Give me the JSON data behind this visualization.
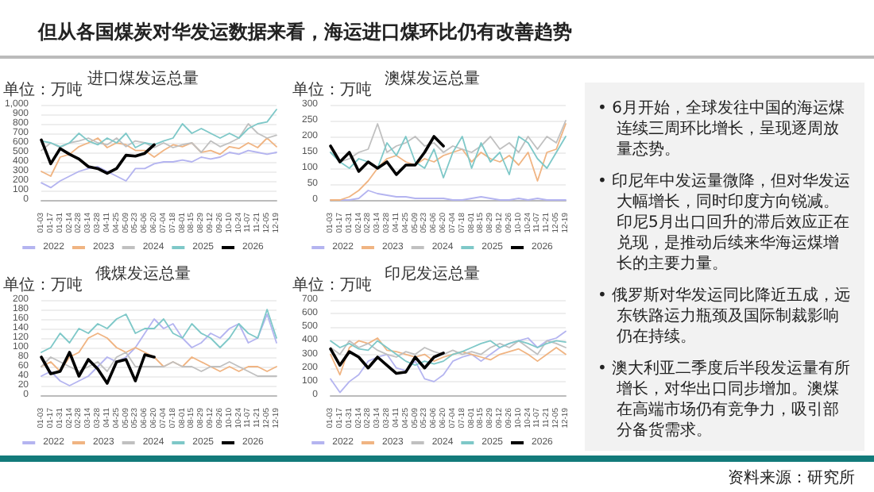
{
  "chart_data": [
    {
      "type": "line",
      "title": "进口煤发运总量",
      "annotations": [
        "单位：万吨"
      ],
      "categories": [
        "01-03",
        "01-17",
        "01-31",
        "02-14",
        "02-28",
        "03-14",
        "03-28",
        "04-11",
        "04-25",
        "05-09",
        "05-23",
        "06-06",
        "06-20",
        "07-04",
        "07-18",
        "08-01",
        "08-15",
        "08-29",
        "09-12",
        "09-26",
        "10-10",
        "10-24",
        "11-07",
        "11-21",
        "12-05",
        "12-19"
      ],
      "ylim": [
        0,
        1000
      ],
      "yticks": [
        0,
        100,
        200,
        300,
        400,
        500,
        600,
        700,
        800,
        900,
        {
          "value": 1000,
          "label": "1,000"
        }
      ],
      "grid": "y",
      "legend": "bottom",
      "marker": "none",
      "line_style": "solid",
      "series": [
        {
          "name": "2022",
          "color": "#b4b4f0",
          "values": [
            180,
            130,
            200,
            250,
            300,
            330,
            350,
            300,
            250,
            200,
            330,
            330,
            380,
            400,
            400,
            420,
            400,
            450,
            430,
            450,
            500,
            480,
            520,
            500,
            480,
            500
          ]
        },
        {
          "name": "2023",
          "color": "#f0b482",
          "values": [
            300,
            250,
            450,
            480,
            560,
            600,
            650,
            550,
            600,
            580,
            520,
            520,
            450,
            520,
            580,
            560,
            600,
            500,
            520,
            480,
            560,
            540,
            600,
            550,
            650,
            560
          ]
        },
        {
          "name": "2024",
          "color": "#c0c0c0",
          "values": [
            520,
            600,
            550,
            600,
            620,
            650,
            600,
            580,
            650,
            560,
            620,
            600,
            550,
            600,
            550,
            580,
            600,
            500,
            620,
            560,
            600,
            650,
            800,
            700,
            650,
            680
          ]
        },
        {
          "name": "2025",
          "color": "#7ec8c8",
          "values": [
            620,
            600,
            560,
            600,
            700,
            620,
            580,
            650,
            600,
            700,
            550,
            600,
            580,
            620,
            650,
            800,
            700,
            750,
            700,
            650,
            700,
            650,
            750,
            800,
            820,
            950
          ]
        },
        {
          "name": "2026",
          "color": "#000000",
          "values": [
            630,
            380,
            540,
            480,
            430,
            350,
            330,
            280,
            330,
            470,
            460,
            490,
            580,
            null,
            null,
            null,
            null,
            null,
            null,
            null,
            null,
            null,
            null,
            null,
            null,
            null
          ]
        }
      ]
    },
    {
      "type": "line",
      "title": "澳煤发运总量",
      "annotations": [
        "单位：万吨"
      ],
      "categories": [
        "01-03",
        "01-17",
        "01-31",
        "02-14",
        "02-28",
        "03-14",
        "03-28",
        "04-11",
        "04-25",
        "05-09",
        "05-23",
        "06-06",
        "06-20",
        "07-04",
        "07-18",
        "08-01",
        "08-15",
        "08-29",
        "09-12",
        "09-26",
        "10-10",
        "10-24",
        "11-07",
        "11-21",
        "12-05",
        "12-19"
      ],
      "ylim": [
        0,
        300
      ],
      "yticks": [
        0,
        50,
        100,
        150,
        200,
        250,
        300
      ],
      "grid": "y",
      "legend": "bottom",
      "marker": "none",
      "line_style": "solid",
      "series": [
        {
          "name": "2022",
          "color": "#b4b4f0",
          "values": [
            0,
            0,
            0,
            5,
            30,
            20,
            15,
            10,
            10,
            5,
            5,
            5,
            5,
            0,
            0,
            5,
            10,
            5,
            0,
            0,
            5,
            0,
            5,
            0,
            0,
            0
          ]
        },
        {
          "name": "2023",
          "color": "#f0b482",
          "values": [
            0,
            0,
            10,
            30,
            60,
            100,
            130,
            140,
            120,
            110,
            130,
            120,
            140,
            150,
            160,
            120,
            150,
            130,
            120,
            140,
            110,
            150,
            60,
            150,
            160,
            240
          ]
        },
        {
          "name": "2024",
          "color": "#c0c0c0",
          "values": [
            150,
            120,
            130,
            150,
            160,
            240,
            150,
            170,
            180,
            200,
            170,
            180,
            150,
            170,
            160,
            150,
            170,
            200,
            160,
            180,
            150,
            200,
            160,
            200,
            180,
            250
          ]
        },
        {
          "name": "2025",
          "color": "#7ec8c8",
          "values": [
            150,
            120,
            100,
            130,
            120,
            100,
            180,
            140,
            200,
            120,
            100,
            160,
            70,
            150,
            200,
            100,
            180,
            120,
            150,
            80,
            200,
            180,
            130,
            100,
            150,
            200
          ]
        },
        {
          "name": "2026",
          "color": "#000000",
          "values": [
            170,
            120,
            150,
            90,
            120,
            100,
            120,
            80,
            110,
            110,
            150,
            200,
            170,
            null,
            null,
            null,
            null,
            null,
            null,
            null,
            null,
            null,
            null,
            null,
            null,
            null
          ]
        }
      ]
    },
    {
      "type": "line",
      "title": "俄煤发运总量",
      "annotations": [
        "单位：万吨"
      ],
      "categories": [
        "01-03",
        "01-17",
        "01-31",
        "02-14",
        "02-28",
        "03-14",
        "03-28",
        "04-11",
        "04-25",
        "05-09",
        "05-23",
        "06-06",
        "06-20",
        "07-04",
        "07-18",
        "08-01",
        "08-15",
        "08-29",
        "09-12",
        "09-26",
        "10-10",
        "10-24",
        "11-07",
        "11-21",
        "12-05",
        "12-19"
      ],
      "ylim": [
        0,
        200
      ],
      "yticks": [
        0,
        20,
        40,
        60,
        80,
        100,
        120,
        140,
        160,
        180,
        200
      ],
      "grid": "y",
      "legend": "bottom",
      "marker": "none",
      "line_style": "solid",
      "series": [
        {
          "name": "2022",
          "color": "#b4b4f0",
          "values": [
            40,
            50,
            30,
            20,
            30,
            40,
            60,
            80,
            70,
            80,
            100,
            130,
            160,
            140,
            150,
            120,
            100,
            110,
            130,
            120,
            140,
            150,
            110,
            120,
            170,
            110
          ]
        },
        {
          "name": "2023",
          "color": "#f0b482",
          "values": [
            60,
            70,
            50,
            80,
            90,
            120,
            130,
            120,
            100,
            90,
            100,
            90,
            80,
            60,
            70,
            60,
            80,
            70,
            60,
            50,
            60,
            50,
            60,
            60,
            50,
            60
          ]
        },
        {
          "name": "2024",
          "color": "#c0c0c0",
          "values": [
            60,
            80,
            70,
            60,
            50,
            60,
            70,
            50,
            80,
            90,
            60,
            60,
            60,
            60,
            70,
            60,
            60,
            50,
            60,
            60,
            70,
            60,
            50,
            40,
            40,
            40
          ]
        },
        {
          "name": "2025",
          "color": "#7ec8c8",
          "values": [
            90,
            100,
            130,
            110,
            140,
            130,
            150,
            140,
            160,
            170,
            130,
            140,
            140,
            160,
            130,
            120,
            150,
            130,
            120,
            100,
            120,
            150,
            130,
            120,
            180,
            120
          ]
        },
        {
          "name": "2026",
          "color": "#000000",
          "values": [
            80,
            45,
            50,
            90,
            40,
            75,
            55,
            25,
            70,
            75,
            30,
            85,
            80,
            null,
            null,
            null,
            null,
            null,
            null,
            null,
            null,
            null,
            null,
            null,
            null,
            null
          ]
        }
      ]
    },
    {
      "type": "line",
      "title": "印尼发运总量",
      "annotations": [
        "单位：万吨"
      ],
      "categories": [
        "01-03",
        "01-17",
        "01-31",
        "02-14",
        "02-28",
        "03-14",
        "03-28",
        "04-11",
        "04-25",
        "05-09",
        "05-23",
        "06-06",
        "06-20",
        "07-04",
        "07-18",
        "08-01",
        "08-15",
        "08-29",
        "09-12",
        "09-26",
        "10-10",
        "10-24",
        "11-07",
        "11-21",
        "12-05",
        "12-19"
      ],
      "ylim": [
        0,
        700
      ],
      "yticks": [
        0,
        100,
        200,
        300,
        400,
        500,
        600,
        700
      ],
      "grid": "y",
      "legend": "bottom",
      "marker": "none",
      "line_style": "solid",
      "series": [
        {
          "name": "2022",
          "color": "#b4b4f0",
          "values": [
            120,
            20,
            100,
            150,
            250,
            280,
            300,
            200,
            180,
            250,
            120,
            100,
            150,
            250,
            280,
            300,
            250,
            300,
            350,
            380,
            400,
            420,
            350,
            400,
            420,
            470
          ]
        },
        {
          "name": "2023",
          "color": "#f0b482",
          "values": [
            300,
            150,
            350,
            400,
            380,
            420,
            330,
            320,
            300,
            280,
            300,
            250,
            280,
            300,
            320,
            300,
            280,
            260,
            300,
            320,
            340,
            300,
            250,
            300,
            350,
            300
          ]
        },
        {
          "name": "2024",
          "color": "#c0c0c0",
          "values": [
            350,
            300,
            400,
            350,
            380,
            330,
            300,
            280,
            320,
            300,
            350,
            320,
            300,
            330,
            300,
            320,
            300,
            350,
            380,
            350,
            400,
            350,
            300,
            400,
            380,
            350
          ]
        },
        {
          "name": "2025",
          "color": "#7ec8c8",
          "values": [
            400,
            350,
            380,
            340,
            330,
            400,
            350,
            300,
            250,
            220,
            250,
            230,
            250,
            300,
            320,
            350,
            380,
            400,
            350,
            380,
            400,
            380,
            350,
            380,
            400,
            390
          ]
        },
        {
          "name": "2026",
          "color": "#000000",
          "values": [
            340,
            220,
            320,
            280,
            200,
            280,
            220,
            160,
            170,
            280,
            200,
            280,
            310,
            null,
            null,
            null,
            null,
            null,
            null,
            null,
            null,
            null,
            null,
            null,
            null,
            null
          ]
        }
      ]
    },
    {
      "type": "other",
      "title": "但从各国煤炭对华发运数据来看，海运进口煤环比仍有改善趋势",
      "annotations": [
        "• 6月开始，全球发往中国的海运煤连续三周环比增长，呈现逐周放量态势。",
        "• 印尼年中发运量微降，但对华发运大幅增长，同时印度方向锐减。印尼5月出口回升的滞后效应正在兑现，是推动后续来华海运煤增长的主要力量。",
        "• 俄罗斯对华发运同比降近五成，远东铁路运力瓶颈及国际制裁影响仍在持续。",
        "• 澳大利亚二季度后半段发运量有所增长，对华出口同步增加。澳煤在高端市场仍有竞争力，吸引部分备货需求。",
        "资料来源：研究所"
      ]
    }
  ]
}
